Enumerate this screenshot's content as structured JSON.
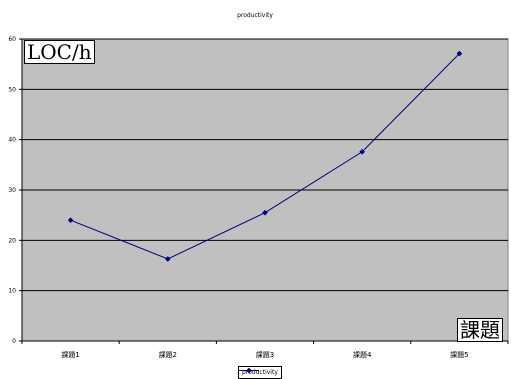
{
  "chart_data": {
    "type": "line",
    "title": "productivity",
    "ylabel": "LOC/h",
    "xlabel": "課題",
    "categories": [
      "課題1",
      "課題2",
      "課題3",
      "課題4",
      "課題5"
    ],
    "series": [
      {
        "name": "productivity",
        "values": [
          24,
          16.3,
          25.5,
          37.6,
          57.1
        ],
        "color": "#000080"
      }
    ],
    "ylim": [
      0,
      60
    ],
    "yticks": [
      0,
      10,
      20,
      30,
      40,
      50,
      60
    ],
    "grid": true,
    "plot_background": "#c0c0c0",
    "legend_position": "bottom"
  }
}
